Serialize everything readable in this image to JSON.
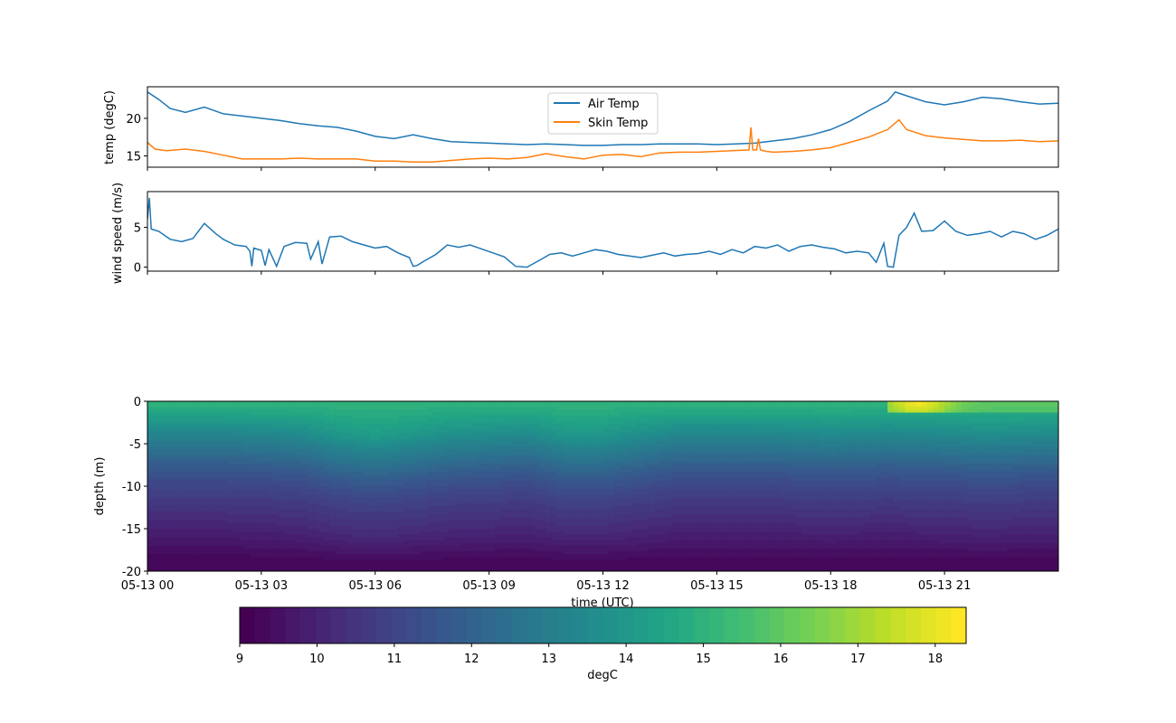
{
  "chart_data": [
    {
      "type": "line",
      "ylabel": "temp (degC)",
      "ylim": [
        13.5,
        24.2
      ],
      "yticks": [
        15,
        20
      ],
      "xlim_hours": [
        0,
        24
      ],
      "legend": {
        "placement": "top-center"
      },
      "series": [
        {
          "name": "Air Temp",
          "color": "#1f77b4",
          "x_hours": [
            0,
            0.3,
            0.6,
            1,
            1.5,
            2,
            2.5,
            3,
            3.5,
            4,
            4.5,
            5,
            5.5,
            6,
            6.5,
            7,
            7.5,
            8,
            8.5,
            9,
            9.5,
            10,
            10.5,
            11,
            11.5,
            12,
            12.5,
            13,
            13.5,
            14,
            14.5,
            15,
            15.5,
            16,
            16.5,
            17,
            17.5,
            18,
            18.5,
            19,
            19.5,
            19.7,
            20,
            20.5,
            21,
            21.5,
            22,
            22.5,
            23,
            23.5,
            24
          ],
          "values": [
            23.5,
            22.5,
            21.3,
            20.8,
            21.5,
            20.6,
            20.3,
            20.0,
            19.7,
            19.3,
            19.0,
            18.8,
            18.3,
            17.6,
            17.3,
            17.8,
            17.3,
            16.9,
            16.8,
            16.7,
            16.6,
            16.5,
            16.6,
            16.5,
            16.4,
            16.4,
            16.5,
            16.5,
            16.6,
            16.6,
            16.6,
            16.5,
            16.6,
            16.7,
            17.0,
            17.3,
            17.8,
            18.5,
            19.6,
            21.0,
            22.3,
            23.5,
            23.0,
            22.2,
            21.8,
            22.2,
            22.8,
            22.6,
            22.2,
            21.9,
            22.0
          ]
        },
        {
          "name": "Skin Temp",
          "color": "#ff7f0e",
          "x_hours": [
            0,
            0.2,
            0.5,
            1,
            1.5,
            2,
            2.5,
            3,
            3.5,
            4,
            4.5,
            5,
            5.5,
            6,
            6.5,
            7,
            7.5,
            8,
            8.5,
            9,
            9.5,
            10,
            10.5,
            11,
            11.5,
            12,
            12.5,
            13,
            13.5,
            14,
            14.5,
            15,
            15.4,
            15.85,
            15.9,
            15.95,
            16.05,
            16.1,
            16.15,
            16.3,
            16.5,
            17,
            17.5,
            18,
            18.5,
            19,
            19.5,
            19.8,
            20,
            20.5,
            21,
            21.5,
            22,
            22.5,
            23,
            23.5,
            24
          ],
          "values": [
            16.8,
            15.9,
            15.7,
            15.9,
            15.6,
            15.1,
            14.6,
            14.6,
            14.6,
            14.7,
            14.6,
            14.6,
            14.6,
            14.3,
            14.3,
            14.2,
            14.2,
            14.4,
            14.6,
            14.7,
            14.6,
            14.8,
            15.3,
            14.9,
            14.6,
            15.1,
            15.2,
            14.9,
            15.4,
            15.5,
            15.5,
            15.6,
            15.7,
            15.8,
            18.8,
            15.8,
            15.8,
            17.3,
            15.8,
            15.6,
            15.5,
            15.6,
            15.8,
            16.1,
            16.8,
            17.5,
            18.5,
            19.8,
            18.5,
            17.7,
            17.4,
            17.2,
            17.0,
            17.0,
            17.1,
            16.9,
            17.0
          ]
        }
      ]
    },
    {
      "type": "line",
      "ylabel": "wind speed (m/s)",
      "ylim": [
        -0.5,
        9.5
      ],
      "yticks": [
        0,
        5
      ],
      "xlim_hours": [
        0,
        24
      ],
      "series": [
        {
          "name": "wind speed",
          "color": "#1f77b4",
          "x_hours": [
            0,
            0.05,
            0.1,
            0.3,
            0.6,
            0.9,
            1.2,
            1.5,
            1.8,
            2,
            2.3,
            2.6,
            2.7,
            2.75,
            2.8,
            3,
            3.1,
            3.2,
            3.4,
            3.6,
            3.9,
            4.2,
            4.3,
            4.5,
            4.6,
            4.8,
            5.1,
            5.4,
            5.7,
            6.0,
            6.3,
            6.6,
            6.9,
            7.0,
            7.1,
            7.3,
            7.6,
            7.9,
            8.2,
            8.5,
            8.8,
            9.1,
            9.4,
            9.7,
            10.0,
            10.3,
            10.6,
            10.9,
            11.2,
            11.5,
            11.8,
            12.1,
            12.4,
            12.7,
            13.0,
            13.3,
            13.6,
            13.9,
            14.2,
            14.5,
            14.8,
            15.1,
            15.4,
            15.7,
            16.0,
            16.3,
            16.6,
            16.9,
            17.2,
            17.5,
            17.8,
            18.1,
            18.4,
            18.7,
            19.0,
            19.2,
            19.4,
            19.5,
            19.65,
            19.8,
            20.0,
            20.2,
            20.4,
            20.7,
            21.0,
            21.3,
            21.6,
            21.9,
            22.2,
            22.5,
            22.8,
            23.1,
            23.4,
            23.7,
            24.0
          ],
          "values": [
            6.0,
            8.7,
            4.8,
            4.5,
            3.5,
            3.2,
            3.6,
            5.5,
            4.2,
            3.5,
            2.8,
            2.6,
            2.0,
            0.1,
            2.4,
            2.1,
            0.2,
            2.2,
            0.1,
            2.6,
            3.1,
            3.0,
            1.0,
            3.2,
            0.4,
            3.8,
            3.9,
            3.2,
            2.8,
            2.4,
            2.6,
            1.8,
            1.2,
            0.1,
            0.2,
            0.8,
            1.6,
            2.8,
            2.5,
            2.8,
            2.3,
            1.8,
            1.3,
            0.1,
            0.0,
            0.8,
            1.6,
            1.8,
            1.4,
            1.8,
            2.2,
            2.0,
            1.6,
            1.4,
            1.2,
            1.5,
            1.8,
            1.4,
            1.6,
            1.7,
            2.0,
            1.6,
            2.2,
            1.8,
            2.6,
            2.4,
            2.8,
            2.0,
            2.6,
            2.8,
            2.5,
            2.3,
            1.8,
            2.0,
            1.8,
            0.6,
            3.0,
            0.1,
            0.0,
            4.0,
            5.0,
            6.8,
            4.5,
            4.6,
            5.8,
            4.5,
            4.0,
            4.2,
            4.5,
            3.8,
            4.5,
            4.2,
            3.5,
            4.0,
            4.8
          ]
        }
      ]
    },
    {
      "type": "heatmap",
      "ylabel": "depth (m)",
      "xlabel": "time (UTC)",
      "ylim": [
        -20,
        0
      ],
      "yticks": [
        0,
        -5,
        -10,
        -15,
        -20
      ],
      "xticks": [
        {
          "hour": 0,
          "label": "05-13 00"
        },
        {
          "hour": 3,
          "label": "05-13 03"
        },
        {
          "hour": 6,
          "label": "05-13 06"
        },
        {
          "hour": 9,
          "label": "05-13 09"
        },
        {
          "hour": 12,
          "label": "05-13 12"
        },
        {
          "hour": 15,
          "label": "05-13 15"
        },
        {
          "hour": 18,
          "label": "05-13 18"
        },
        {
          "hour": 21,
          "label": "05-13 21"
        }
      ],
      "depth_profile_m": [
        0,
        -0.5,
        -1,
        -2,
        -3,
        -4,
        -5,
        -6,
        -7,
        -8,
        -9,
        -10,
        -11,
        -12,
        -13,
        -14,
        -15,
        -16,
        -17,
        -18,
        -19,
        -20
      ],
      "profile_times_hours": [
        0,
        2,
        4,
        5,
        6,
        8,
        10,
        11,
        12,
        14,
        16,
        18,
        19.5,
        21,
        22,
        24
      ],
      "thermocline_shift_m": [
        0,
        0,
        0.5,
        1.5,
        2.0,
        1.0,
        0.5,
        1.5,
        1.5,
        0.2,
        0.2,
        0.5,
        0.3,
        0.5,
        0.8,
        0.5
      ],
      "profile_temps_degC": [
        15.0,
        14.9,
        14.7,
        14.2,
        13.7,
        13.2,
        12.8,
        12.4,
        12.0,
        11.6,
        11.3,
        11.0,
        10.8,
        10.6,
        10.4,
        10.2,
        10.0,
        9.8,
        9.6,
        9.4,
        9.3,
        9.2
      ],
      "surface_warm_event": {
        "start_hour": 19.5,
        "end_hour": 24,
        "peak_hour": 20.3,
        "peak_degC": 18.3
      }
    }
  ],
  "colorbar": {
    "label": "degC",
    "range": [
      9.0,
      18.4
    ],
    "ticks": [
      9,
      10,
      11,
      12,
      13,
      14,
      15,
      16,
      17,
      18
    ],
    "levels": 48
  }
}
